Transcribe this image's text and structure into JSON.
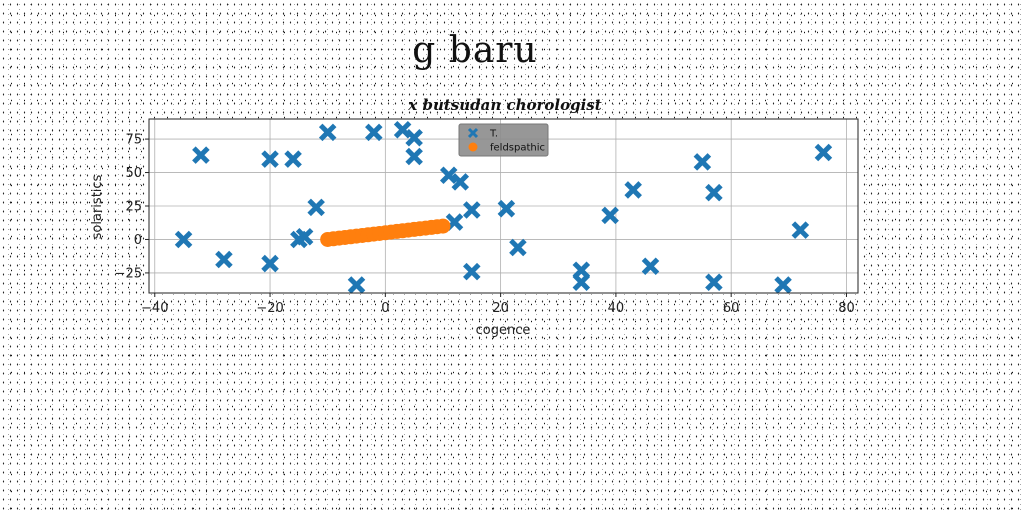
{
  "chart_data": {
    "type": "scatter",
    "title": "g baru",
    "subtitle": "x butsudan chorologist",
    "xlabel": "cogence",
    "ylabel": "solaristics",
    "xlim": [
      -41,
      82
    ],
    "ylim": [
      -40,
      90
    ],
    "xticks": [
      -40,
      -20,
      0,
      20,
      40,
      60,
      80
    ],
    "yticks": [
      -25,
      0,
      25,
      50,
      75
    ],
    "grid": true,
    "legend_position": "top-center",
    "series": [
      {
        "name": "T.",
        "marker": "x",
        "color": "#1f77b4",
        "x": [
          -35,
          -32,
          -28,
          -20,
          -20,
          -16,
          -15,
          -14,
          -12,
          -10,
          -5,
          -2,
          3,
          5,
          5,
          11,
          12,
          13,
          15,
          15,
          21,
          23,
          34,
          34,
          39,
          43,
          46,
          55,
          57,
          57,
          69,
          72,
          76
        ],
        "y": [
          0,
          63,
          -15,
          -18,
          60,
          60,
          0,
          2,
          24,
          80,
          -34,
          80,
          82,
          76,
          62,
          48,
          13,
          43,
          22,
          -24,
          23,
          -6,
          -23,
          -32,
          18,
          37,
          -20,
          58,
          35,
          -32,
          -34,
          7,
          65
        ]
      },
      {
        "name": "feldspathic",
        "marker": "o",
        "color": "#ff7f0e",
        "x": [
          -10.0,
          -9.0,
          -8.0,
          -7.0,
          -6.0,
          -5.0,
          -4.0,
          -3.0,
          -2.0,
          -1.0,
          0.0,
          1.0,
          2.0,
          3.0,
          4.0,
          5.0,
          6.0,
          7.0,
          8.0,
          9.0,
          10.0
        ],
        "y": [
          0.0,
          0.5,
          1.0,
          1.5,
          2.0,
          2.5,
          3.0,
          3.5,
          4.0,
          4.5,
          5.0,
          5.5,
          6.0,
          6.5,
          7.0,
          7.5,
          8.0,
          8.5,
          9.0,
          9.5,
          10.0
        ]
      }
    ]
  }
}
